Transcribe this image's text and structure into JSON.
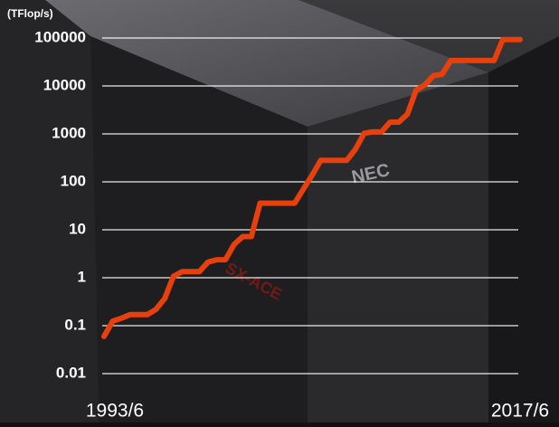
{
  "chart_data": {
    "type": "line",
    "y_axis_label": "(TFlop/s)",
    "categories": [
      "1993/6",
      null,
      null,
      null,
      null,
      null,
      null,
      null,
      null,
      null,
      null,
      null,
      null,
      null,
      null,
      null,
      null,
      null,
      null,
      null,
      null,
      null,
      null,
      null,
      null,
      null,
      null,
      null,
      null,
      null,
      null,
      null,
      null,
      null,
      null,
      null,
      null,
      null,
      null,
      null,
      null,
      null,
      null,
      null,
      null,
      null,
      null,
      null,
      "2017/6"
    ],
    "series": [
      {
        "name": "TFlop/s",
        "color": "#e8400c",
        "values": [
          0.0597,
          0.124,
          0.143,
          0.17,
          0.17,
          0.17,
          0.22,
          0.368,
          1.068,
          1.338,
          1.338,
          1.338,
          2.121,
          2.379,
          2.379,
          4.938,
          7.226,
          7.226,
          35.86,
          35.86,
          35.86,
          35.86,
          35.86,
          70.72,
          136.8,
          280.6,
          280.6,
          280.6,
          280.6,
          478.2,
          1026,
          1105,
          1105,
          1759,
          1759,
          2566,
          8162,
          10510,
          16324,
          17590,
          33863,
          33863,
          33863,
          33863,
          33863,
          33863,
          93015,
          93015,
          93015
        ]
      }
    ],
    "log_scale_y": true,
    "grid": true,
    "ylim": [
      0.01,
      100000
    ],
    "yticks": [
      0.01,
      0.1,
      1,
      10,
      100,
      1000,
      10000,
      100000
    ],
    "annotations": [
      "NEC",
      "SX-ACE"
    ]
  }
}
